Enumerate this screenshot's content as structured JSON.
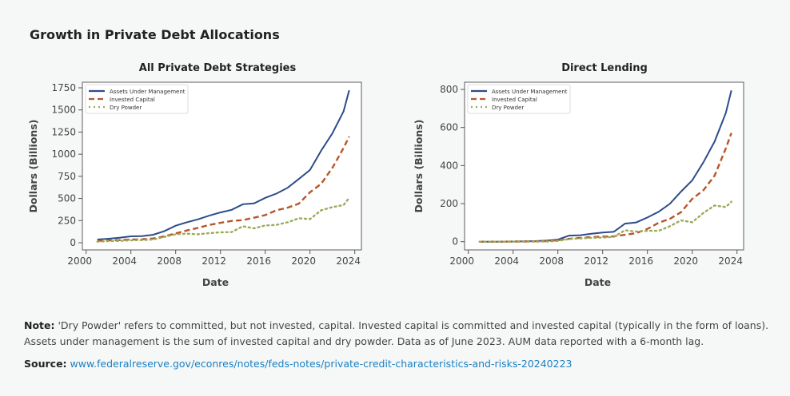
{
  "title": "Growth in Private Debt Allocations",
  "note_label": "Note:",
  "note_text": " 'Dry Powder' refers to committed, but not invested, capital. Invested capital is committed and invested capital (typically in the form of loans). Assets under management is the sum of invested capital and dry powder. Data as of June 2023. AUM data reported with a 6-month lag.",
  "source_label": "Source:",
  "source_link": "www.federalreserve.gov/econres/notes/feds-notes/private-credit-characteristics-and-risks-20240223",
  "colors": {
    "aum": "#2b4c8a",
    "invested": "#b5562a",
    "dry": "#9aab5a"
  },
  "chart_data": [
    {
      "type": "line",
      "title": "All Private Debt Strategies",
      "xlabel": "Date",
      "ylabel": "Dollars (Billions)",
      "xlim": [
        2000,
        2025
      ],
      "ylim": [
        0,
        1750
      ],
      "xticks": [
        2000,
        2004,
        2008,
        2012,
        2016,
        2020,
        2024
      ],
      "yticks": [
        0,
        250,
        500,
        750,
        1000,
        1250,
        1500,
        1750
      ],
      "legend": "top-left",
      "x": [
        2001,
        2002,
        2003,
        2004,
        2005,
        2006,
        2007,
        2008,
        2009,
        2010,
        2011,
        2012,
        2013,
        2014,
        2015,
        2016,
        2017,
        2018,
        2019,
        2020,
        2021,
        2022,
        2023,
        2023.5
      ],
      "series": [
        {
          "name": "Assets Under Management",
          "style": "solid",
          "values": [
            36,
            45,
            57,
            72,
            75,
            90,
            132,
            192,
            231,
            264,
            306,
            342,
            372,
            435,
            444,
            507,
            555,
            621,
            720,
            822,
            1041,
            1236,
            1485,
            1722
          ]
        },
        {
          "name": "Invested Capital",
          "style": "dashed",
          "values": [
            21,
            27,
            30,
            36,
            39,
            48,
            72,
            105,
            138,
            168,
            201,
            225,
            246,
            255,
            282,
            312,
            366,
            396,
            441,
            570,
            666,
            846,
            1071,
            1200
          ]
        },
        {
          "name": "Dry Powder",
          "style": "dotted",
          "values": [
            12,
            18,
            21,
            27,
            30,
            36,
            66,
            96,
            102,
            96,
            108,
            117,
            120,
            186,
            162,
            195,
            201,
            231,
            276,
            267,
            366,
            402,
            426,
            507
          ]
        }
      ]
    },
    {
      "type": "line",
      "title": "Direct Lending",
      "xlabel": "Date",
      "ylabel": "Dollars (Billions)",
      "xlim": [
        2000,
        2025
      ],
      "ylim": [
        0,
        800
      ],
      "xticks": [
        2000,
        2004,
        2008,
        2012,
        2016,
        2020,
        2024
      ],
      "yticks": [
        0,
        200,
        400,
        600,
        800
      ],
      "legend": "top-left",
      "x": [
        2001,
        2002,
        2003,
        2004,
        2005,
        2006,
        2007,
        2008,
        2009,
        2010,
        2011,
        2012,
        2013,
        2014,
        2015,
        2016,
        2017,
        2018,
        2019,
        2020,
        2021,
        2022,
        2023,
        2023.5
      ],
      "series": [
        {
          "name": "Assets Under Management",
          "style": "solid",
          "values": [
            0,
            0,
            0,
            1,
            2,
            3,
            6,
            11,
            32,
            34,
            42,
            48,
            52,
            95,
            101,
            127,
            157,
            199,
            263,
            322,
            417,
            526,
            676,
            795
          ]
        },
        {
          "name": "Invested Capital",
          "style": "dashed",
          "values": [
            0,
            0,
            0,
            1,
            1,
            2,
            3,
            8,
            15,
            20,
            24,
            27,
            28,
            36,
            45,
            67,
            99,
            120,
            155,
            225,
            270,
            347,
            490,
            571
          ]
        },
        {
          "name": "Dry Powder",
          "style": "dotted",
          "values": [
            0,
            0,
            0,
            0,
            0,
            0,
            1,
            4,
            14,
            17,
            20,
            22,
            25,
            60,
            53,
            57,
            57,
            81,
            112,
            102,
            151,
            190,
            182,
            210
          ]
        }
      ]
    }
  ]
}
